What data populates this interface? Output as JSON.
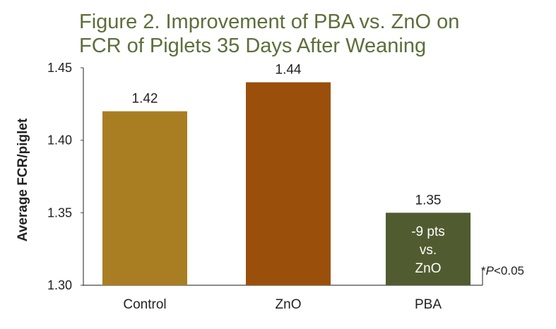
{
  "chart_data": {
    "type": "bar",
    "title_line1": "Figure 2. Improvement of PBA vs. ZnO on",
    "title_line2": "FCR of Piglets 35 Days After Weaning",
    "ylabel": "Average FCR/piglet",
    "xlabel": "",
    "categories": [
      "Control",
      "ZnO",
      "PBA"
    ],
    "values": [
      1.42,
      1.44,
      1.35
    ],
    "value_labels": [
      "1.42",
      "1.44",
      "1.35"
    ],
    "bar_colors": [
      "#a97e23",
      "#9a500b",
      "#505c30"
    ],
    "ylim": [
      1.3,
      1.45
    ],
    "yticks": [
      1.3,
      1.35,
      1.4,
      1.45
    ],
    "ytick_labels": [
      "1.30",
      "1.35",
      "1.40",
      "1.45"
    ],
    "inner_annotation": {
      "category": "PBA",
      "lines": [
        "-9 pts",
        "vs.",
        "ZnO"
      ]
    },
    "footnote": "*P<0.05",
    "grid": false,
    "legend": "none"
  }
}
